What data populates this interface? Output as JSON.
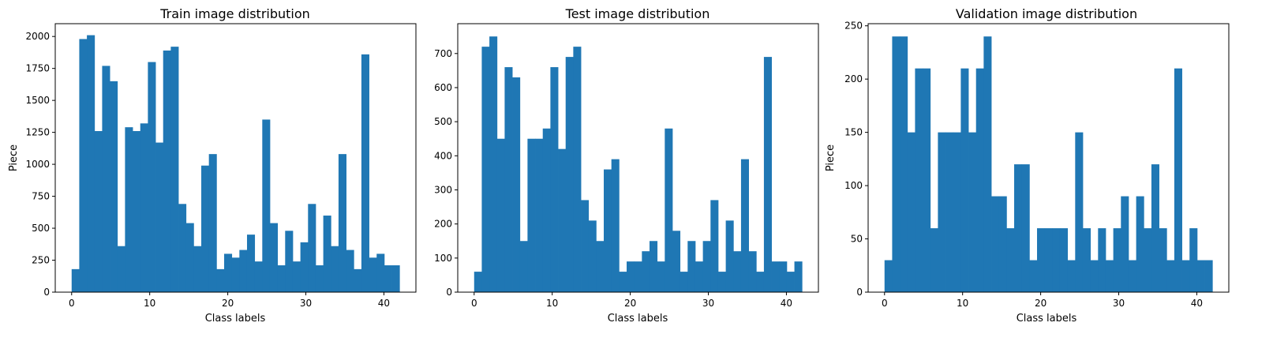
{
  "colors": {
    "bar": "#1f77b4",
    "axis": "#000000",
    "background": "#ffffff"
  },
  "chart_data": [
    {
      "type": "bar",
      "title": "Train image distribution",
      "xlabel": "Class labels",
      "ylabel": "Piece",
      "xlim": [
        -2.1,
        44.1
      ],
      "ylim": [
        0,
        2100
      ],
      "xticks": [
        0,
        10,
        20,
        30,
        40
      ],
      "yticks": [
        0,
        250,
        500,
        750,
        1000,
        1250,
        1500,
        1750,
        2000
      ],
      "categories": [
        0,
        1,
        2,
        3,
        4,
        5,
        6,
        7,
        8,
        9,
        10,
        11,
        12,
        13,
        14,
        15,
        16,
        17,
        18,
        19,
        20,
        21,
        22,
        23,
        24,
        25,
        26,
        27,
        28,
        29,
        30,
        31,
        32,
        33,
        34,
        35,
        36,
        37,
        38,
        39,
        40,
        41,
        42
      ],
      "values": [
        180,
        1980,
        2010,
        1260,
        1770,
        1650,
        360,
        1290,
        1260,
        1320,
        1800,
        1170,
        1890,
        1920,
        690,
        540,
        360,
        990,
        1080,
        180,
        300,
        270,
        330,
        450,
        240,
        1350,
        540,
        210,
        480,
        240,
        390,
        690,
        210,
        599,
        360,
        1080,
        330,
        180,
        1860,
        270,
        300,
        210,
        210
      ]
    },
    {
      "type": "bar",
      "title": "Test image distribution",
      "xlabel": "Class labels",
      "ylabel": "",
      "xlim": [
        -2.1,
        44.1
      ],
      "ylim": [
        0,
        787.5
      ],
      "xticks": [
        0,
        10,
        20,
        30,
        40
      ],
      "yticks": [
        0,
        100,
        200,
        300,
        400,
        500,
        600,
        700
      ],
      "categories": [
        0,
        1,
        2,
        3,
        4,
        5,
        6,
        7,
        8,
        9,
        10,
        11,
        12,
        13,
        14,
        15,
        16,
        17,
        18,
        19,
        20,
        21,
        22,
        23,
        24,
        25,
        26,
        27,
        28,
        29,
        30,
        31,
        32,
        33,
        34,
        35,
        36,
        37,
        38,
        39,
        40,
        41,
        42
      ],
      "values": [
        60,
        720,
        750,
        450,
        660,
        630,
        150,
        450,
        450,
        480,
        660,
        420,
        690,
        720,
        270,
        210,
        150,
        360,
        390,
        60,
        90,
        90,
        120,
        150,
        90,
        480,
        180,
        60,
        150,
        90,
        150,
        270,
        60,
        210,
        120,
        390,
        120,
        60,
        690,
        90,
        90,
        60,
        90
      ]
    },
    {
      "type": "bar",
      "title": "Validation image distribution",
      "xlabel": "Class labels",
      "ylabel": "Piece",
      "xlim": [
        -2.1,
        44.1
      ],
      "ylim": [
        0,
        252
      ],
      "xticks": [
        0,
        10,
        20,
        30,
        40
      ],
      "yticks": [
        0,
        50,
        100,
        150,
        200,
        250
      ],
      "categories": [
        0,
        1,
        2,
        3,
        4,
        5,
        6,
        7,
        8,
        9,
        10,
        11,
        12,
        13,
        14,
        15,
        16,
        17,
        18,
        19,
        20,
        21,
        22,
        23,
        24,
        25,
        26,
        27,
        28,
        29,
        30,
        31,
        32,
        33,
        34,
        35,
        36,
        37,
        38,
        39,
        40,
        41,
        42
      ],
      "values": [
        30,
        240,
        240,
        150,
        210,
        210,
        60,
        150,
        150,
        150,
        210,
        150,
        210,
        240,
        90,
        90,
        60,
        120,
        120,
        30,
        60,
        60,
        60,
        60,
        30,
        150,
        60,
        30,
        60,
        30,
        60,
        90,
        30,
        90,
        60,
        120,
        60,
        30,
        210,
        30,
        60,
        30,
        30
      ]
    }
  ]
}
